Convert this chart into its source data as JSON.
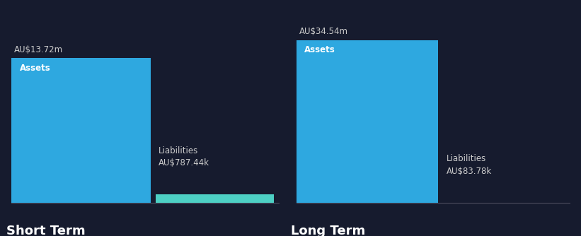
{
  "background_color": "#161b2e",
  "short_term": {
    "assets_value": 13.72,
    "assets_label": "AU$13.72m",
    "assets_color": "#2ea8e0",
    "liabilities_value": 0.78744,
    "liabilities_label": "AU$787.44k",
    "liabilities_color": "#4dd0c4"
  },
  "long_term": {
    "assets_value": 34.54,
    "assets_label": "AU$34.54m",
    "assets_color": "#2ea8e0",
    "liabilities_value": 0.08378,
    "liabilities_label": "AU$83.78k",
    "liabilities_color": "#4dd0c4"
  },
  "text_color": "#ffffff",
  "label_color": "#cccccc",
  "value_label_fontsize": 8.5,
  "bar_label_fontsize": 8.5,
  "section_title_fontsize": 13,
  "short_term_ylim": 17.0,
  "long_term_ylim": 38.0
}
